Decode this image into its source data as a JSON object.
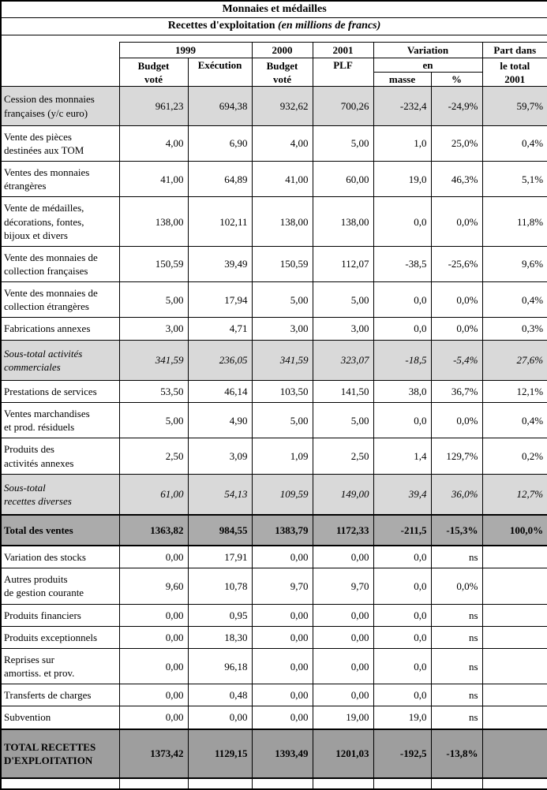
{
  "titles": {
    "line1": "Monnaies et médailles",
    "line2_main": "Recettes d'exploitation",
    "line2_italic": " (en millions de francs)"
  },
  "header": {
    "group_1999": "1999",
    "group_2000": "2000",
    "group_2001": "2001",
    "group_variation": "Variation",
    "part_line1": "Part dans",
    "budget_vote_1999": "Budget\nvoté",
    "execution": "Exécution",
    "budget_vote_2000": "Budget\nvoté",
    "plf": "PLF",
    "en": "en",
    "masse": "masse",
    "pct": "%",
    "part_rest": "le total\n2001"
  },
  "rows": [
    {
      "label": "Cession des monnaies\nfrançaises (y/c euro)",
      "style": "shade",
      "values": [
        "961,23",
        "694,38",
        "932,62",
        "700,26",
        "-232,4",
        "-24,9%",
        "59,7%"
      ]
    },
    {
      "label": "Vente des pièces\ndestinées aux TOM",
      "style": "plain",
      "values": [
        "4,00",
        "6,90",
        "4,00",
        "5,00",
        "1,0",
        "25,0%",
        "0,4%"
      ]
    },
    {
      "label": "Ventes des monnaies\nétrangères",
      "style": "plain",
      "values": [
        "41,00",
        "64,89",
        "41,00",
        "60,00",
        "19,0",
        "46,3%",
        "5,1%"
      ]
    },
    {
      "label": "Vente de médailles,\ndécorations, fontes,\nbijoux et divers",
      "style": "plain",
      "values": [
        "138,00",
        "102,11",
        "138,00",
        "138,00",
        "0,0",
        "0,0%",
        "11,8%"
      ]
    },
    {
      "label": "Vente des monnaies de\ncollection françaises",
      "style": "plain",
      "values": [
        "150,59",
        "39,49",
        "150,59",
        "112,07",
        "-38,5",
        "-25,6%",
        "9,6%"
      ]
    },
    {
      "label": "Vente des monnaies de\ncollection étrangères",
      "style": "plain",
      "values": [
        "5,00",
        "17,94",
        "5,00",
        "5,00",
        "0,0",
        "0,0%",
        "0,4%"
      ]
    },
    {
      "label": "Fabrications annexes",
      "style": "plain",
      "values": [
        "3,00",
        "4,71",
        "3,00",
        "3,00",
        "0,0",
        "0,0%",
        "0,3%"
      ]
    },
    {
      "label": "Sous-total activités\ncommerciales",
      "style": "subtotal",
      "values": [
        "341,59",
        "236,05",
        "341,59",
        "323,07",
        "-18,5",
        "-5,4%",
        "27,6%"
      ]
    },
    {
      "label": "Prestations de services",
      "style": "plain",
      "values": [
        "53,50",
        "46,14",
        "103,50",
        "141,50",
        "38,0",
        "36,7%",
        "12,1%"
      ]
    },
    {
      "label": "Ventes marchandises\net prod. résiduels",
      "style": "plain",
      "values": [
        "5,00",
        "4,90",
        "5,00",
        "5,00",
        "0,0",
        "0,0%",
        "0,4%"
      ]
    },
    {
      "label": "Produits des\nactivités annexes",
      "style": "plain",
      "values": [
        "2,50",
        "3,09",
        "1,09",
        "2,50",
        "1,4",
        "129,7%",
        "0,2%"
      ]
    },
    {
      "label": "Sous-total\nrecettes diverses",
      "style": "subtotal",
      "values": [
        "61,00",
        "54,13",
        "109,59",
        "149,00",
        "39,4",
        "36,0%",
        "12,7%"
      ]
    },
    {
      "label": "Total des ventes",
      "style": "total",
      "values": [
        "1363,82",
        "984,55",
        "1383,79",
        "1172,33",
        "-211,5",
        "-15,3%",
        "100,0%"
      ]
    },
    {
      "label": "Variation des stocks",
      "style": "plain",
      "values": [
        "0,00",
        "17,91",
        "0,00",
        "0,00",
        "0,0",
        "ns",
        ""
      ]
    },
    {
      "label": "Autres produits\nde gestion courante",
      "style": "plain",
      "values": [
        "9,60",
        "10,78",
        "9,70",
        "9,70",
        "0,0",
        "0,0%",
        ""
      ]
    },
    {
      "label": "Produits financiers",
      "style": "plain",
      "values": [
        "0,00",
        "0,95",
        "0,00",
        "0,00",
        "0,0",
        "ns",
        ""
      ]
    },
    {
      "label": "Produits exceptionnels",
      "style": "plain",
      "values": [
        "0,00",
        "18,30",
        "0,00",
        "0,00",
        "0,0",
        "ns",
        ""
      ]
    },
    {
      "label": "Reprises sur\namortiss. et prov.",
      "style": "plain",
      "values": [
        "0,00",
        "96,18",
        "0,00",
        "0,00",
        "0,0",
        "ns",
        ""
      ]
    },
    {
      "label": "Transferts de charges",
      "style": "plain",
      "values": [
        "0,00",
        "0,48",
        "0,00",
        "0,00",
        "0,0",
        "ns",
        ""
      ]
    },
    {
      "label": "Subvention",
      "style": "plain",
      "values": [
        "0,00",
        "0,00",
        "0,00",
        "19,00",
        "19,0",
        "ns",
        ""
      ]
    },
    {
      "label": "TOTAL RECETTES\nD'EXPLOITATION",
      "style": "grandtotal",
      "values": [
        "1373,42",
        "1129,15",
        "1393,49",
        "1201,03",
        "-192,5",
        "-13,8%",
        ""
      ]
    }
  ]
}
